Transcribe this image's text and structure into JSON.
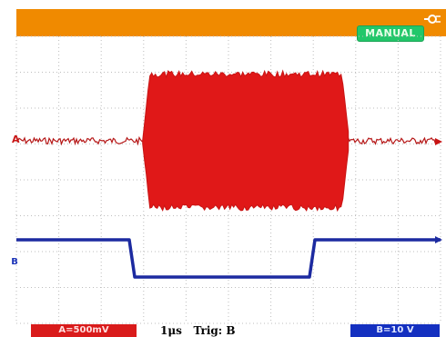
{
  "header": {
    "mode_label": "MANUAL",
    "plug_icon": "power-plug-icon"
  },
  "markers": {
    "channel_a": "A",
    "channel_b": "B"
  },
  "status": {
    "channel_a": "A=500mV",
    "timebase": "1μs",
    "trigger": "Trig: B",
    "channel_b": "B=10 V"
  },
  "colors": {
    "header_bar": "#f08a00",
    "mode_badge": "#22c76a",
    "channel_a": "#d61a1a",
    "channel_b": "#1c2aa0",
    "grid": "#c7c7c7"
  },
  "channel_a_trace": {
    "idle_noise": 0.08,
    "burst_amplitude": 1.0,
    "burst_start_div": 3.2,
    "burst_end_div": 8.3
  },
  "channel_b_trace": {
    "high_level": 1,
    "low_level": 0,
    "fall_div": 3.0,
    "rise_div": 8.0
  }
}
